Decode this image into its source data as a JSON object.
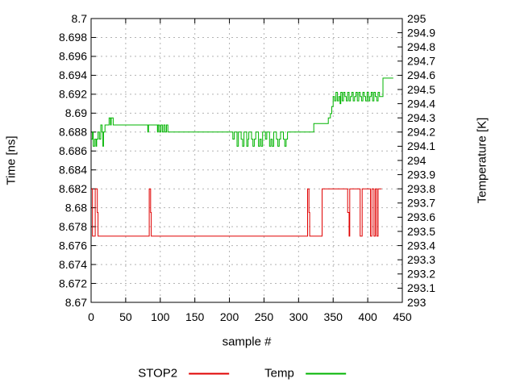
{
  "chart_data": {
    "type": "line",
    "title": "",
    "xlabel": "sample #",
    "y1label": "Time [ns]",
    "y2label": "Temperature [K]",
    "xlim": [
      0,
      450
    ],
    "y1lim": [
      8.67,
      8.7
    ],
    "y2lim": [
      293,
      295
    ],
    "grid": true,
    "legend_position": "bottom-center",
    "x_tick_labels": [
      "0",
      "50",
      "100",
      "150",
      "200",
      "250",
      "300",
      "350",
      "400",
      "450"
    ],
    "y1_tick_labels": [
      "8.7",
      "8.698",
      "8.696",
      "8.694",
      "8.692",
      "8.69",
      "8.688",
      "8.686",
      "8.684",
      "8.682",
      "8.68",
      "8.678",
      "8.676",
      "8.674",
      "8.672",
      "8.67"
    ],
    "y2_tick_labels": [
      "295",
      "294.9",
      "294.8",
      "294.7",
      "294.6",
      "294.5",
      "294.4",
      "294.3",
      "294.2",
      "294.1",
      "294",
      "293.9",
      "293.8",
      "293.7",
      "293.6",
      "293.5",
      "293.4",
      "293.3",
      "293.2",
      "293.1",
      "293"
    ],
    "grid_color": "#b3b3b3",
    "border_color": "#000000",
    "series": [
      {
        "name": "STOP2",
        "axis": "y1",
        "color": "#e00000",
        "runs": [
          [
            0,
            2,
            8.682
          ],
          [
            2,
            6,
            8.677
          ],
          [
            6,
            9,
            8.682
          ],
          [
            9,
            10,
            8.6795
          ],
          [
            10,
            84,
            8.677
          ],
          [
            84,
            86,
            8.682
          ],
          [
            86,
            87,
            8.6795
          ],
          [
            87,
            313,
            8.677
          ],
          [
            313,
            315,
            8.682
          ],
          [
            315,
            316,
            8.6795
          ],
          [
            316,
            334,
            8.677
          ],
          [
            334,
            371,
            8.682
          ],
          [
            371,
            373,
            8.6795
          ],
          [
            373,
            374,
            8.677
          ],
          [
            374,
            389,
            8.682
          ],
          [
            389,
            392,
            8.677
          ],
          [
            392,
            404,
            8.682
          ],
          [
            404,
            406,
            8.677
          ],
          [
            406,
            409,
            8.682
          ],
          [
            409,
            411,
            8.677
          ],
          [
            411,
            413,
            8.682
          ],
          [
            413,
            415,
            8.677
          ],
          [
            415,
            420,
            8.682
          ]
        ]
      },
      {
        "name": "Temp",
        "axis": "y2",
        "color": "#00b400",
        "runs": [
          [
            0,
            2,
            294.15
          ],
          [
            2,
            3,
            294.2
          ],
          [
            3,
            5,
            294.1
          ],
          [
            5,
            7,
            294.15
          ],
          [
            7,
            8,
            294.1
          ],
          [
            8,
            10,
            294.15
          ],
          [
            10,
            12,
            294.2
          ],
          [
            12,
            14,
            294.15
          ],
          [
            14,
            16,
            294.25
          ],
          [
            16,
            17,
            294.2
          ],
          [
            17,
            18,
            294.1
          ],
          [
            18,
            20,
            294.2
          ],
          [
            20,
            26,
            294.25
          ],
          [
            26,
            28,
            294.3
          ],
          [
            28,
            29,
            294.25
          ],
          [
            29,
            32,
            294.3
          ],
          [
            32,
            82,
            294.25
          ],
          [
            82,
            83,
            294.2
          ],
          [
            83,
            96,
            294.25
          ],
          [
            96,
            97,
            294.2
          ],
          [
            97,
            99,
            294.25
          ],
          [
            99,
            101,
            294.2
          ],
          [
            101,
            103,
            294.25
          ],
          [
            103,
            105,
            294.2
          ],
          [
            105,
            107,
            294.25
          ],
          [
            107,
            109,
            294.2
          ],
          [
            109,
            111,
            294.25
          ],
          [
            111,
            205,
            294.2
          ],
          [
            205,
            207,
            294.15
          ],
          [
            207,
            211,
            294.2
          ],
          [
            211,
            213,
            294.1
          ],
          [
            213,
            217,
            294.2
          ],
          [
            217,
            219,
            294.15
          ],
          [
            219,
            221,
            294.1
          ],
          [
            221,
            225,
            294.2
          ],
          [
            225,
            227,
            294.1
          ],
          [
            227,
            228,
            294.15
          ],
          [
            228,
            232,
            294.2
          ],
          [
            232,
            234,
            294.15
          ],
          [
            234,
            236,
            294.1
          ],
          [
            236,
            238,
            294.15
          ],
          [
            238,
            242,
            294.2
          ],
          [
            242,
            244,
            294.1
          ],
          [
            244,
            246,
            294.15
          ],
          [
            246,
            248,
            294.1
          ],
          [
            248,
            252,
            294.2
          ],
          [
            252,
            254,
            294.15
          ],
          [
            254,
            258,
            294.2
          ],
          [
            258,
            260,
            294.1
          ],
          [
            260,
            262,
            294.15
          ],
          [
            262,
            264,
            294.1
          ],
          [
            264,
            268,
            294.2
          ],
          [
            268,
            270,
            294.15
          ],
          [
            270,
            272,
            294.1
          ],
          [
            272,
            274,
            294.15
          ],
          [
            274,
            278,
            294.2
          ],
          [
            278,
            280,
            294.15
          ],
          [
            280,
            282,
            294.1
          ],
          [
            282,
            284,
            294.15
          ],
          [
            284,
            322,
            294.2
          ],
          [
            322,
            343,
            294.26
          ],
          [
            343,
            346,
            294.3
          ],
          [
            346,
            348,
            294.33
          ],
          [
            348,
            350,
            294.38
          ],
          [
            350,
            352,
            294.45
          ],
          [
            352,
            354,
            294.42
          ],
          [
            354,
            356,
            294.48
          ],
          [
            356,
            358,
            294.42
          ],
          [
            358,
            360,
            294.45
          ],
          [
            360,
            361,
            294.4
          ],
          [
            361,
            363,
            294.48
          ],
          [
            363,
            365,
            294.42
          ],
          [
            365,
            367,
            294.48
          ],
          [
            367,
            369,
            294.45
          ],
          [
            369,
            371,
            294.42
          ],
          [
            371,
            373,
            294.48
          ],
          [
            373,
            375,
            294.42
          ],
          [
            375,
            377,
            294.45
          ],
          [
            377,
            379,
            294.48
          ],
          [
            379,
            381,
            294.42
          ],
          [
            381,
            383,
            294.45
          ],
          [
            383,
            385,
            294.48
          ],
          [
            385,
            387,
            294.42
          ],
          [
            387,
            389,
            294.48
          ],
          [
            389,
            391,
            294.45
          ],
          [
            391,
            393,
            294.42
          ],
          [
            393,
            395,
            294.48
          ],
          [
            395,
            397,
            294.45
          ],
          [
            397,
            399,
            294.42
          ],
          [
            399,
            401,
            294.48
          ],
          [
            401,
            403,
            294.42
          ],
          [
            403,
            405,
            294.45
          ],
          [
            405,
            407,
            294.48
          ],
          [
            407,
            409,
            294.42
          ],
          [
            409,
            411,
            294.48
          ],
          [
            411,
            413,
            294.45
          ],
          [
            413,
            415,
            294.42
          ],
          [
            415,
            417,
            294.48
          ],
          [
            417,
            422,
            294.45
          ],
          [
            422,
            437,
            294.58
          ]
        ]
      }
    ]
  }
}
